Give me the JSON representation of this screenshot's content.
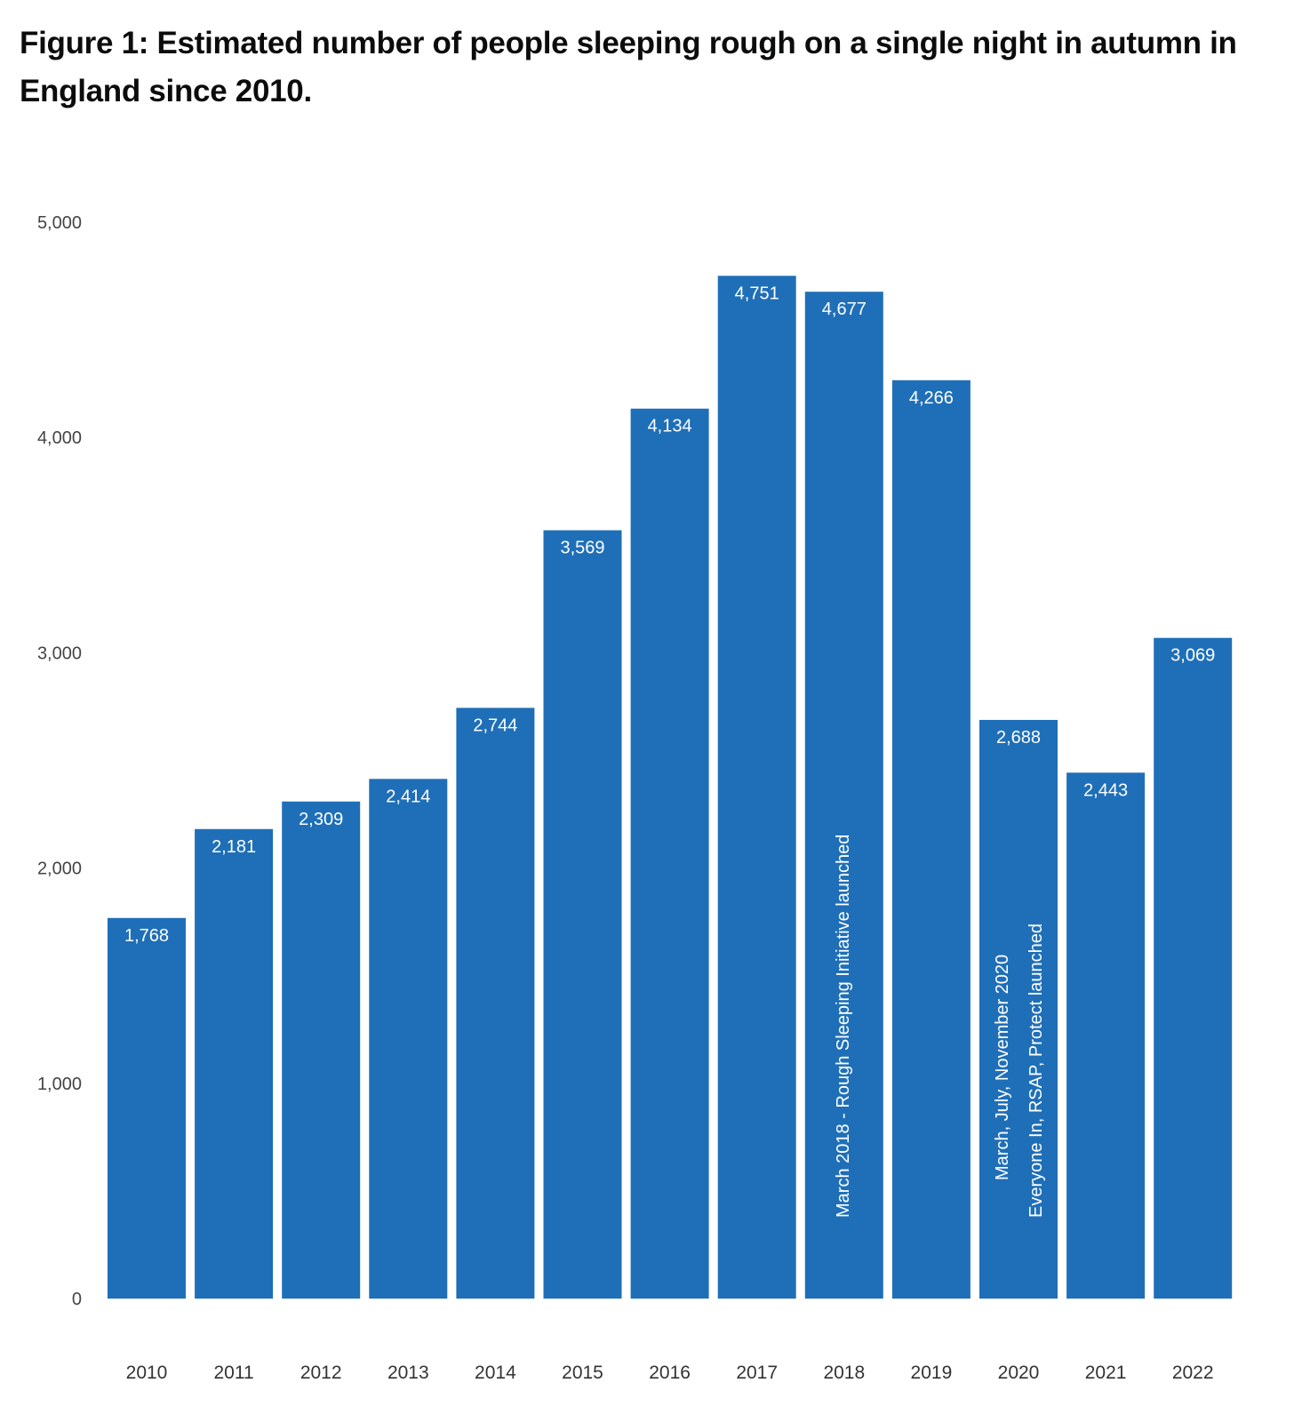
{
  "chart_data": {
    "type": "bar",
    "title": "Figure 1: Estimated number of people sleeping rough on a single night in autumn in England since 2010.",
    "categories": [
      "2010",
      "2011",
      "2012",
      "2013",
      "2014",
      "2015",
      "2016",
      "2017",
      "2018",
      "2019",
      "2020",
      "2021",
      "2022"
    ],
    "values": [
      1768,
      2181,
      2309,
      2414,
      2744,
      3569,
      4134,
      4751,
      4677,
      4266,
      2688,
      2443,
      3069
    ],
    "value_labels": [
      "1,768",
      "2,181",
      "2,309",
      "2,414",
      "2,744",
      "3,569",
      "4,134",
      "4,751",
      "4,677",
      "4,266",
      "2,688",
      "2,443",
      "3,069"
    ],
    "ylim": [
      0,
      5000
    ],
    "yticks": [
      0,
      1000,
      2000,
      3000,
      4000,
      5000
    ],
    "ytick_labels": [
      "0",
      "1,000",
      "2,000",
      "3,000",
      "4,000",
      "5,000"
    ],
    "xlabel": "",
    "ylabel": "",
    "grid": false,
    "bar_color": "#1f6fb8",
    "annotations": [
      {
        "category": "2018",
        "lines": [
          "March 2018 - Rough Sleeping Initiative launched"
        ]
      },
      {
        "category": "2020",
        "lines": [
          "March, July, November 2020",
          "Everyone In, RSAP, Protect launched"
        ]
      }
    ]
  }
}
